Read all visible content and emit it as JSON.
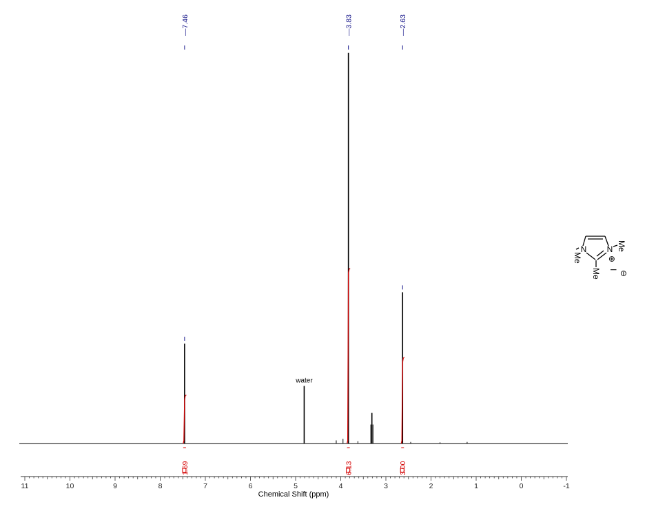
{
  "chart_data": {
    "type": "line",
    "title": "",
    "xlabel": "Chemical Shift (ppm)",
    "ylabel": "",
    "xlim": [
      11,
      -1
    ],
    "x_reversed": true,
    "ylim": [
      0,
      1
    ],
    "grid": false,
    "x_ticks": [
      11,
      10,
      9,
      8,
      7,
      6,
      5,
      4,
      3,
      2,
      1,
      0,
      -1
    ],
    "x_tick_labels": [
      "11",
      "10",
      "9",
      "8",
      "7",
      "6",
      "5",
      "4",
      "3",
      "2",
      "1",
      "0",
      "-1"
    ],
    "peak_labels": [
      {
        "ppm": 7.46,
        "label": "7.46"
      },
      {
        "ppm": 3.83,
        "label": "3.83"
      },
      {
        "ppm": 2.63,
        "label": "2.63"
      }
    ],
    "peaks": [
      {
        "ppm": 7.46,
        "height": 0.255
      },
      {
        "ppm": 4.81,
        "height": 0.147
      },
      {
        "ppm": 3.83,
        "height": 0.997
      },
      {
        "ppm": 3.31,
        "height": 0.078
      },
      {
        "ppm": 2.63,
        "height": 0.386
      },
      {
        "ppm": 3.95,
        "height": 0.012
      },
      {
        "ppm": 4.1,
        "height": 0.008
      },
      {
        "ppm": 3.62,
        "height": 0.006
      },
      {
        "ppm": 2.45,
        "height": 0.004
      },
      {
        "ppm": 1.8,
        "height": 0.003
      },
      {
        "ppm": 1.2,
        "height": 0.004
      }
    ],
    "annotations": [
      {
        "ppm": 4.81,
        "text": "water"
      }
    ],
    "integrals": [
      {
        "ppm": 7.46,
        "value": "1.69",
        "curve_height": 0.122
      },
      {
        "ppm": 3.83,
        "value": "6.13",
        "curve_height": 0.445
      },
      {
        "ppm": 2.63,
        "value": "3.00",
        "curve_height": 0.218
      }
    ],
    "colors": {
      "spectrum": "#000000",
      "integral": "#d40000",
      "peak_label": "#1a1a8c",
      "axis": "#333333"
    }
  },
  "structure": {
    "atom_labels": [
      "N",
      "N",
      "Me",
      "Me",
      "Me",
      "I"
    ],
    "charge_labels": [
      "⊕",
      "⊖"
    ]
  }
}
